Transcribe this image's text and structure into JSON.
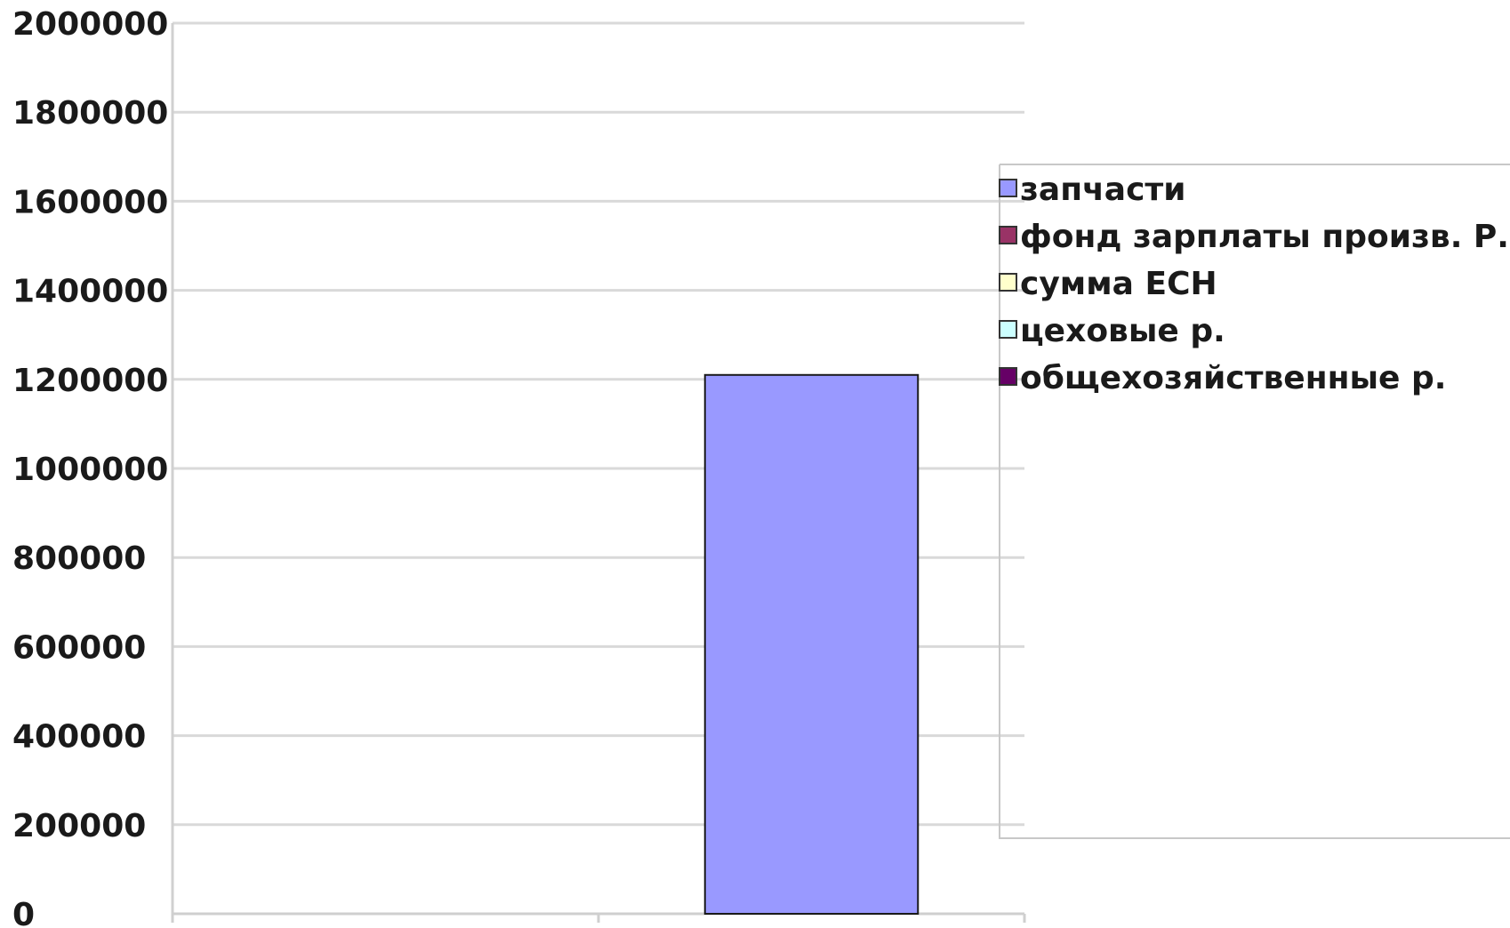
{
  "chart_data": {
    "type": "bar",
    "title": "",
    "xlabel": "",
    "ylabel": "",
    "ylim": [
      0,
      2000000
    ],
    "yticks": [
      0,
      200000,
      400000,
      600000,
      800000,
      1000000,
      1200000,
      1400000,
      1600000,
      1800000,
      2000000
    ],
    "ytick_labels": [
      "0",
      "200000",
      "400000",
      "600000",
      "800000",
      "1000000",
      "1200000",
      "1400000",
      "1600000",
      "1800000",
      "2000000"
    ],
    "grid": true,
    "legend_position": "right",
    "categories": [
      "",
      ""
    ],
    "series": [
      {
        "name": "запчасти",
        "color": "#9999ff",
        "values": [
          0,
          1210000
        ]
      },
      {
        "name": "фонд зарплаты произв. Р.",
        "color": "#993366",
        "values": [
          0,
          0
        ]
      },
      {
        "name": "сумма ЕСН",
        "color": "#ffffcc",
        "values": [
          0,
          0
        ]
      },
      {
        "name": "цеховые р.",
        "color": "#ccffff",
        "values": [
          0,
          0
        ]
      },
      {
        "name": "общехозяйственные р.",
        "color": "#660066",
        "values": [
          0,
          0
        ]
      }
    ]
  }
}
